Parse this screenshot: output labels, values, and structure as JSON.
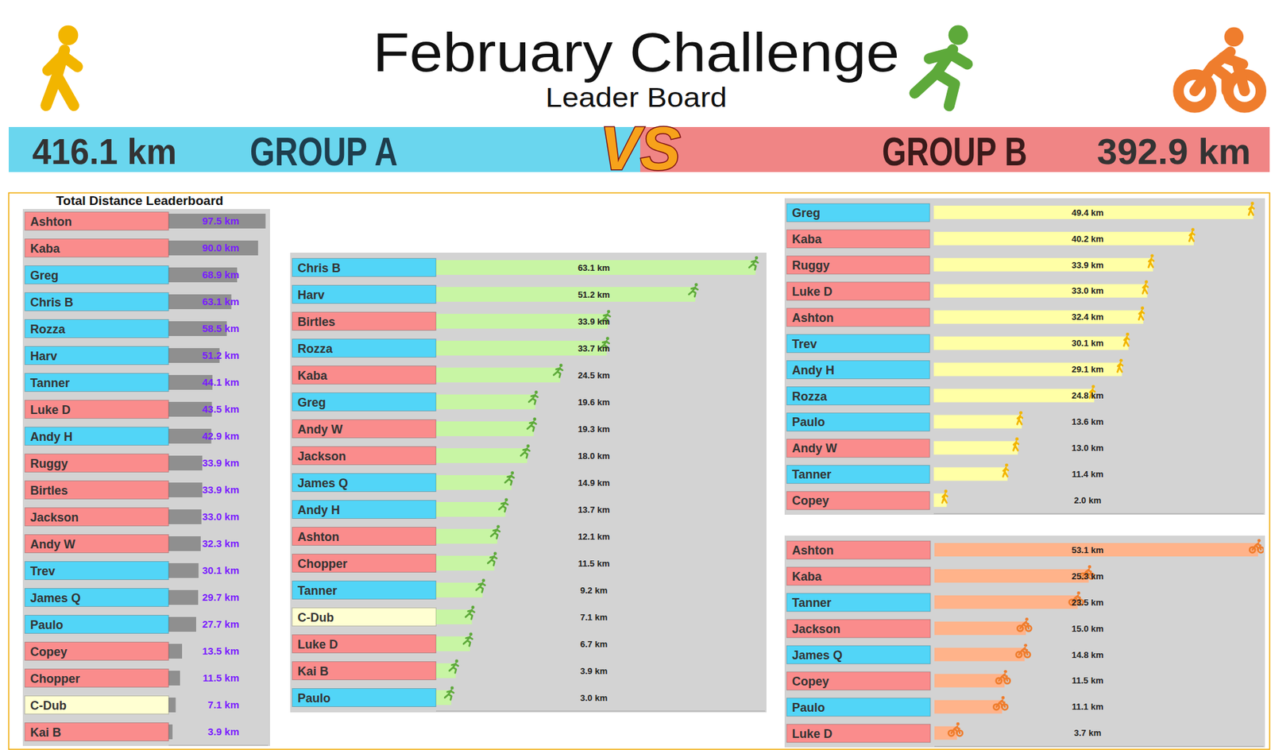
{
  "header": {
    "title": "February Challenge",
    "subtitle": "Leader Board"
  },
  "groups": [
    {
      "name": "GROUP A",
      "total": "416.1 km",
      "color": "#6ad6ee"
    },
    {
      "name": "GROUP B",
      "total": "392.9 km",
      "color": "#f08585"
    }
  ],
  "vs": "VS",
  "chart_data": [
    {
      "type": "bar",
      "orientation": "horizontal",
      "title": "Total Distance Leaderboard",
      "categories": [
        "Ashton",
        "Kaba",
        "Greg",
        "Chris B",
        "Rozza",
        "Harv",
        "Tanner",
        "Luke D",
        "Andy H",
        "Ruggy",
        "Birtles",
        "Jackson",
        "Andy W",
        "Trev",
        "James Q",
        "Paulo",
        "Copey",
        "Chopper",
        "C-Dub",
        "Kai B"
      ],
      "values": [
        97.5,
        90.0,
        68.9,
        63.1,
        58.5,
        51.2,
        44.1,
        43.5,
        42.9,
        33.9,
        33.9,
        33.0,
        32.3,
        30.1,
        29.7,
        27.7,
        13.5,
        11.5,
        7.1,
        3.9
      ],
      "value_labels": [
        "97.5 km",
        "90.0 km",
        "68.9 km",
        "63.1 km",
        "58.5 km",
        "51.2 km",
        "44.1 km",
        "43.5 km",
        "42.9 km",
        "33.9 km",
        "33.9 km",
        "33.0 km",
        "32.3 km",
        "30.1 km",
        "29.7 km",
        "27.7 km",
        "13.5 km",
        "11.5 km",
        "7.1 km",
        "3.9 km"
      ],
      "colors": [
        "#fa8c8c",
        "#fa8c8c",
        "#52d5f7",
        "#52d5f7",
        "#52d5f7",
        "#52d5f7",
        "#52d5f7",
        "#fa8c8c",
        "#52d5f7",
        "#fa8c8c",
        "#fa8c8c",
        "#fa8c8c",
        "#fa8c8c",
        "#52d5f7",
        "#52d5f7",
        "#52d5f7",
        "#fa8c8c",
        "#fa8c8c",
        "#ffffd2",
        "#fa8c8c"
      ],
      "color": "#8f8f8f",
      "xlim": [
        0,
        100
      ],
      "tick_labels": "y",
      "data_labels": true
    },
    {
      "type": "bar",
      "orientation": "horizontal",
      "categories": [
        "Chris B",
        "Harv",
        "Birtles",
        "Rozza",
        "Kaba",
        "Greg",
        "Andy W",
        "Jackson",
        "James Q",
        "Andy H",
        "Ashton",
        "Chopper",
        "Tanner",
        "C-Dub",
        "Luke D",
        "Kai B",
        "Paulo"
      ],
      "values": [
        63.1,
        51.2,
        33.9,
        33.7,
        24.5,
        19.6,
        19.3,
        18.0,
        14.9,
        13.7,
        12.1,
        11.5,
        9.2,
        7.1,
        6.7,
        3.9,
        3.0
      ],
      "value_labels": [
        "63.1 km",
        "51.2 km",
        "33.9 km",
        "33.7 km",
        "24.5 km",
        "19.6 km",
        "19.3 km",
        "18.0 km",
        "14.9 km",
        "13.7 km",
        "12.1 km",
        "11.5 km",
        "9.2 km",
        "7.1 km",
        "6.7 km",
        "3.9 km",
        "3.0 km"
      ],
      "colors": [
        "#52d5f7",
        "#52d5f7",
        "#fa8c8c",
        "#52d5f7",
        "#fa8c8c",
        "#52d5f7",
        "#fa8c8c",
        "#fa8c8c",
        "#52d5f7",
        "#52d5f7",
        "#fa8c8c",
        "#fa8c8c",
        "#52d5f7",
        "#ffffd2",
        "#fa8c8c",
        "#fa8c8c",
        "#52d5f7"
      ],
      "color": "#c8f5a4",
      "xlim": [
        0,
        65
      ],
      "tick_labels": "y",
      "data_labels": true,
      "marker": "run"
    },
    {
      "type": "bar",
      "orientation": "horizontal",
      "categories": [
        "Greg",
        "Kaba",
        "Ruggy",
        "Luke D",
        "Ashton",
        "Trev",
        "Andy H",
        "Rozza",
        "Paulo",
        "Andy W",
        "Tanner",
        "Copey"
      ],
      "values": [
        49.4,
        40.2,
        33.9,
        33.0,
        32.4,
        30.1,
        29.1,
        24.8,
        13.6,
        13.0,
        11.4,
        2.0
      ],
      "value_labels": [
        "49.4 km",
        "40.2 km",
        "33.9 km",
        "33.0 km",
        "32.4 km",
        "30.1 km",
        "29.1 km",
        "24.8 km",
        "13.6 km",
        "13.0 km",
        "11.4 km",
        "2.0 km"
      ],
      "colors": [
        "#52d5f7",
        "#fa8c8c",
        "#fa8c8c",
        "#fa8c8c",
        "#fa8c8c",
        "#52d5f7",
        "#52d5f7",
        "#52d5f7",
        "#52d5f7",
        "#fa8c8c",
        "#52d5f7",
        "#fa8c8c"
      ],
      "color": "#ffffa6",
      "xlim": [
        0,
        51
      ],
      "tick_labels": "y",
      "data_labels": true,
      "marker": "walk"
    },
    {
      "type": "bar",
      "orientation": "horizontal",
      "categories": [
        "Ashton",
        "Kaba",
        "Tanner",
        "Jackson",
        "James Q",
        "Copey",
        "Paulo",
        "Luke D"
      ],
      "values": [
        53.1,
        25.3,
        23.5,
        15.0,
        14.8,
        11.5,
        11.1,
        3.7
      ],
      "value_labels": [
        "53.1 km",
        "25.3 km",
        "23.5 km",
        "15.0 km",
        "14.8 km",
        "11.5 km",
        "11.1 km",
        "3.7 km"
      ],
      "colors": [
        "#fa8c8c",
        "#fa8c8c",
        "#52d5f7",
        "#fa8c8c",
        "#52d5f7",
        "#fa8c8c",
        "#52d5f7",
        "#fa8c8c"
      ],
      "color": "#ffb38a",
      "xlim": [
        0,
        54
      ],
      "tick_labels": "y",
      "data_labels": true,
      "marker": "bike"
    }
  ]
}
